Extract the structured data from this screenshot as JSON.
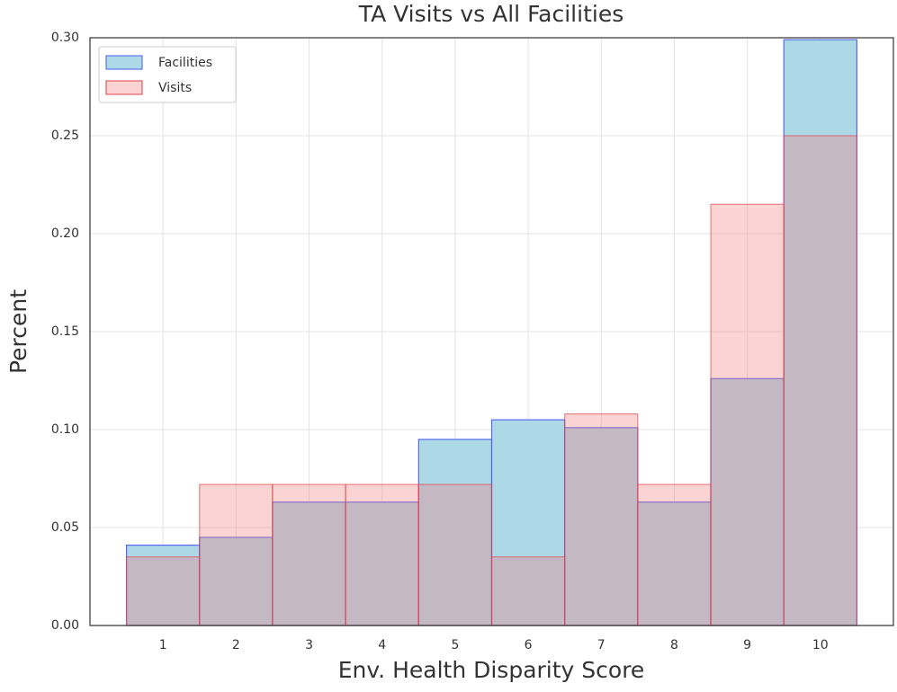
{
  "chart_data": {
    "type": "histogram",
    "title": "TA Visits vs All Facilities",
    "xlabel": "Env. Health Disparity Score",
    "ylabel": "Percent",
    "bins": [
      0.5,
      1.5,
      2.5,
      3.5,
      4.5,
      5.5,
      6.5,
      7.5,
      8.5,
      9.5,
      10.5
    ],
    "series": [
      {
        "name": "Facilities",
        "color": "#add8e6",
        "edgecolor": "#4a5cf0",
        "values": [
          0.041,
          0.045,
          0.063,
          0.063,
          0.095,
          0.105,
          0.101,
          0.063,
          0.126,
          0.299
        ]
      },
      {
        "name": "Visits",
        "color": "#f08080",
        "edgecolor": "#e0404a",
        "values": [
          0.035,
          0.072,
          0.072,
          0.072,
          0.072,
          0.035,
          0.108,
          0.072,
          0.215,
          0.25
        ]
      }
    ],
    "xlim": [
      0,
      11
    ],
    "xticks": [
      1,
      2,
      3,
      4,
      5,
      6,
      7,
      8,
      9,
      10
    ],
    "ylim": [
      0,
      0.3
    ],
    "yticks": [
      {
        "value": 0,
        "label": "0.00"
      },
      0.05,
      {
        "value": 0.1,
        "label": "0.10"
      },
      0.15,
      {
        "value": 0.2,
        "label": "0.20"
      },
      0.25,
      {
        "value": 0.3,
        "label": "0.30"
      }
    ],
    "grid": true,
    "legend": "upper left"
  }
}
